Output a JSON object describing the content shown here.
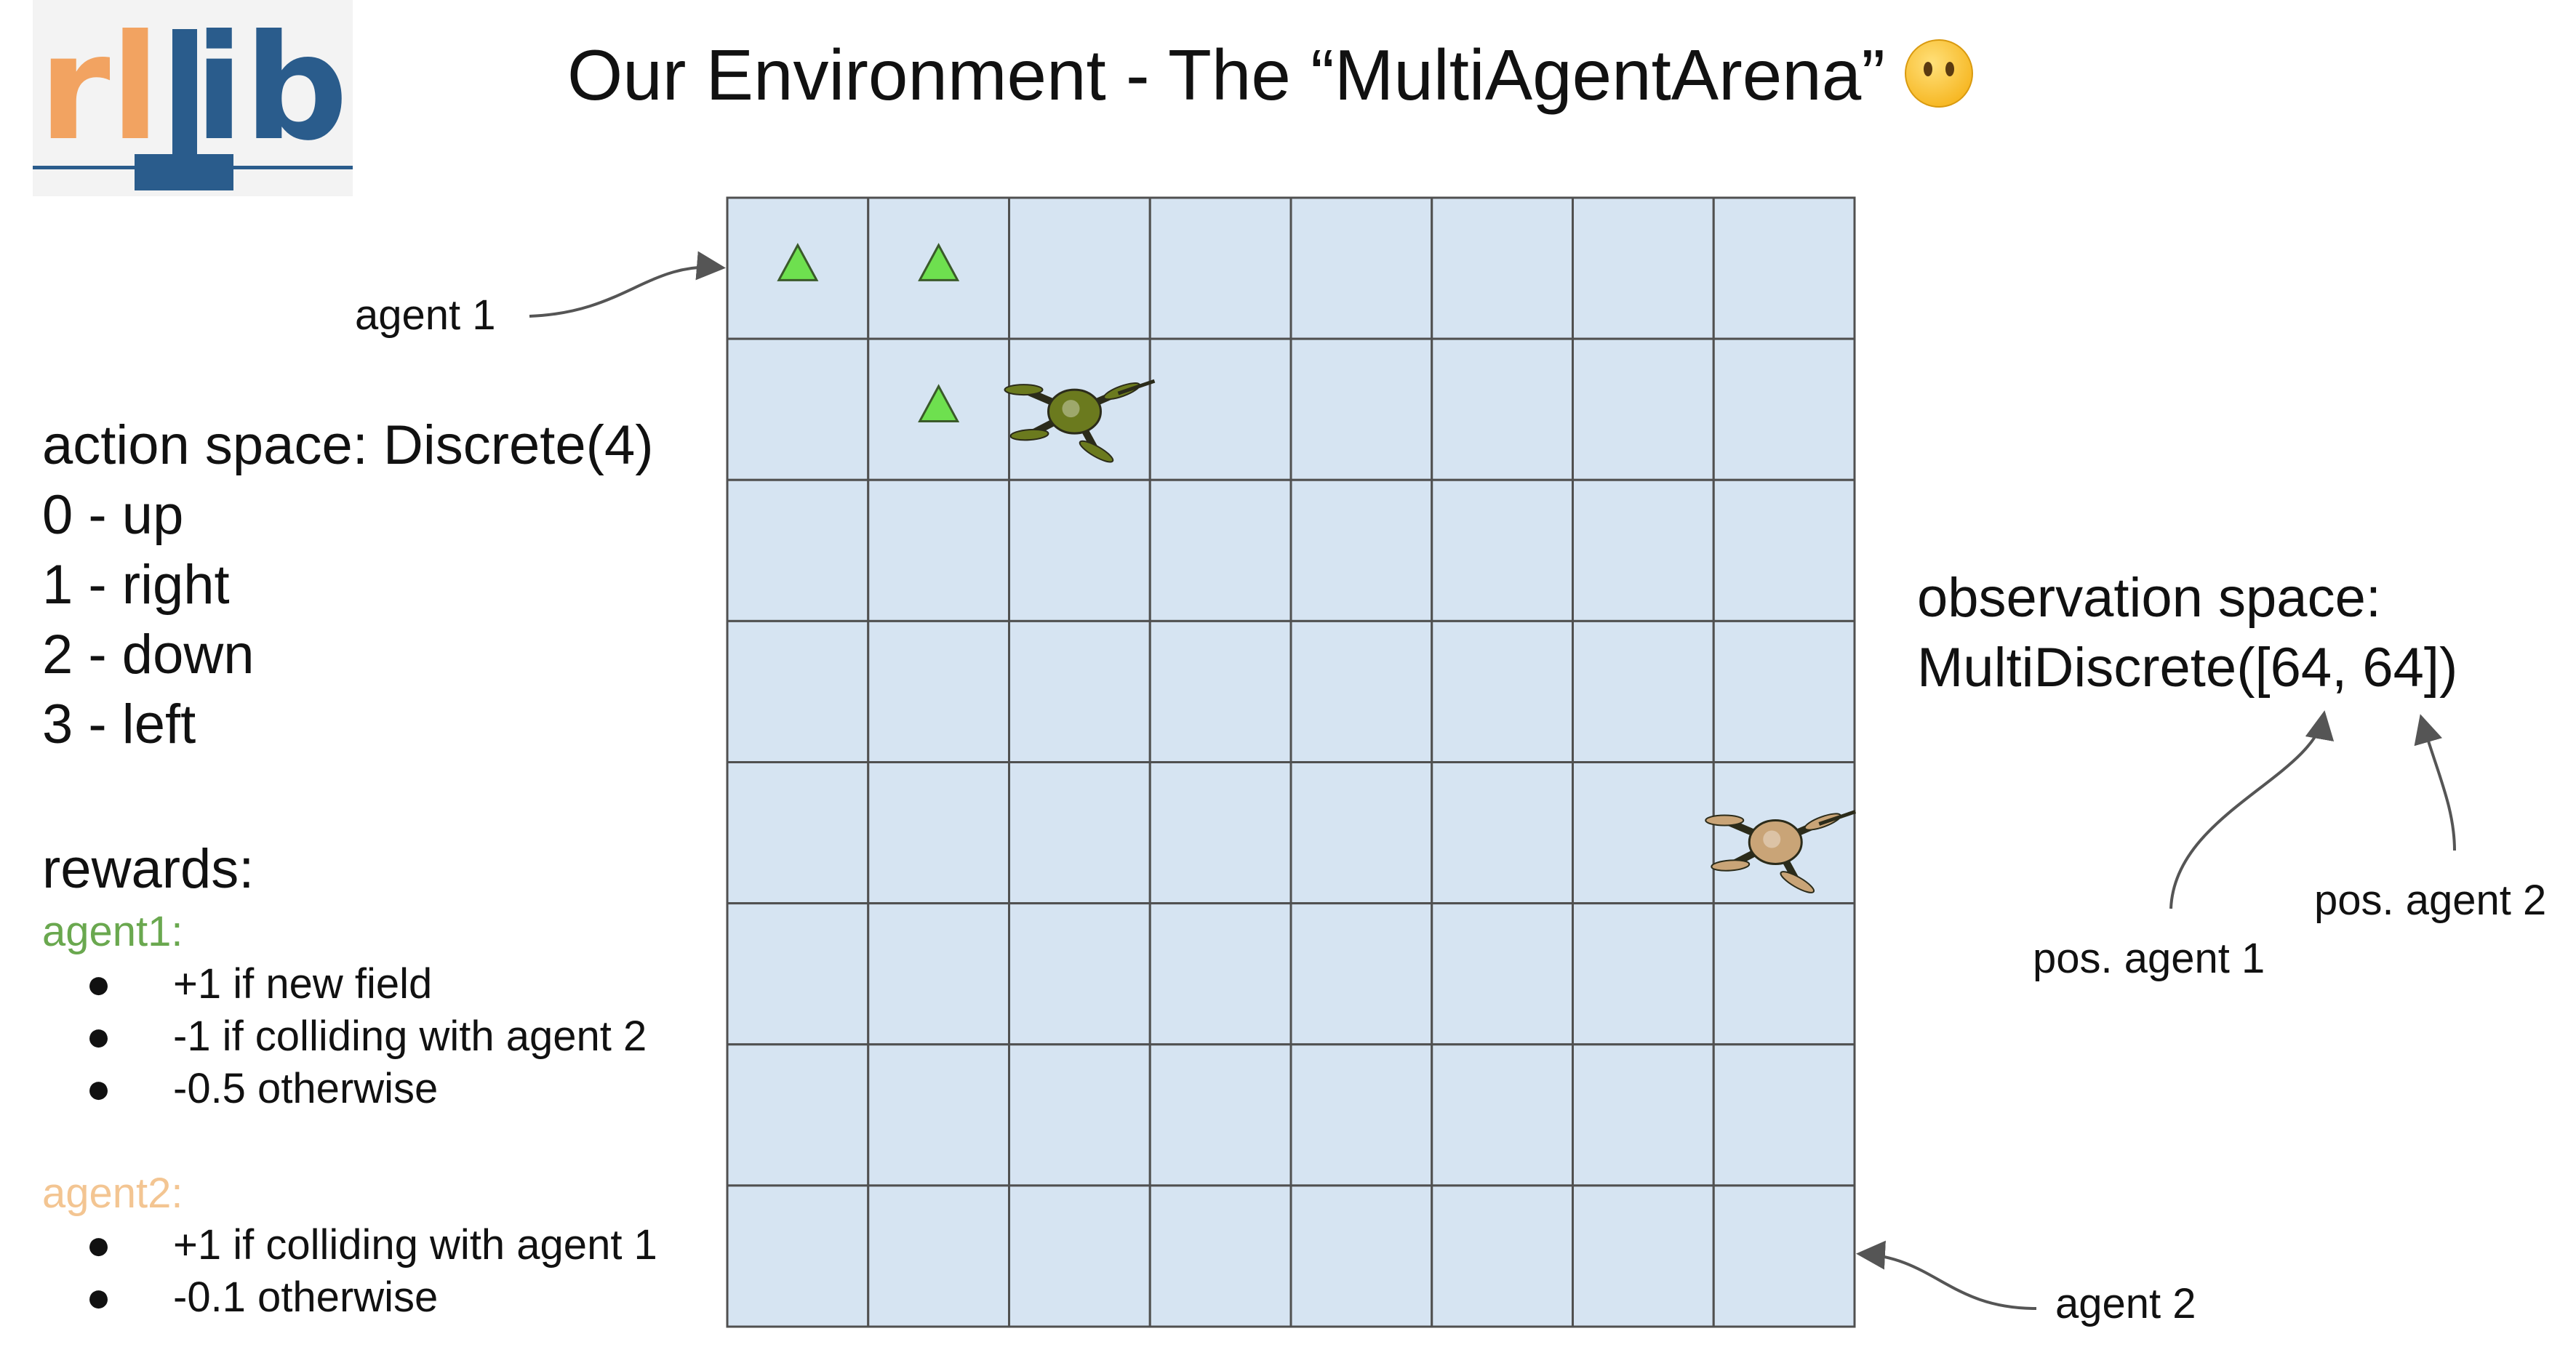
{
  "logo": {
    "text": "rllib",
    "colors": {
      "orange": "#f2a361",
      "blue": "#2a5c8c"
    }
  },
  "title": "Our Environment - The “MultiAgentArena”",
  "title_emoji": "face-without-mouth",
  "grid": {
    "rows": 8,
    "cols": 8,
    "cell_color": "#d6e4f2",
    "line_color": "#505050",
    "visited_markers": [
      {
        "row": 0,
        "col": 0
      },
      {
        "row": 0,
        "col": 1
      },
      {
        "row": 1,
        "col": 1
      }
    ],
    "marker_color": "#6ee04f",
    "agent1_drone": {
      "row": 1,
      "col": 2,
      "color": "#6b7a1e"
    },
    "agent2_drone": {
      "row": 4,
      "col": 7,
      "color": "#c9a477"
    }
  },
  "labels": {
    "agent1": "agent 1",
    "agent2": "agent 2"
  },
  "action_space": {
    "title": "action space: Discrete(4)",
    "items": [
      "0 - up",
      "1 - right",
      "2 - down",
      "3 - left"
    ]
  },
  "rewards": {
    "title": "rewards:",
    "agent1": {
      "label": "agent1:",
      "color": "#6aa84f",
      "items": [
        "+1 if new field",
        "-1 if colliding with agent 2",
        "-0.5 otherwise"
      ]
    },
    "agent2": {
      "label": "agent2:",
      "color": "#f3c592",
      "items": [
        "+1 if colliding with agent 1",
        "-0.1 otherwise"
      ]
    },
    "bullet": "●"
  },
  "observation_space": {
    "line1": "observation space:",
    "line2": "MultiDiscrete([64, 64])",
    "pos_agent1": "pos. agent 1",
    "pos_agent2": "pos. agent 2"
  }
}
